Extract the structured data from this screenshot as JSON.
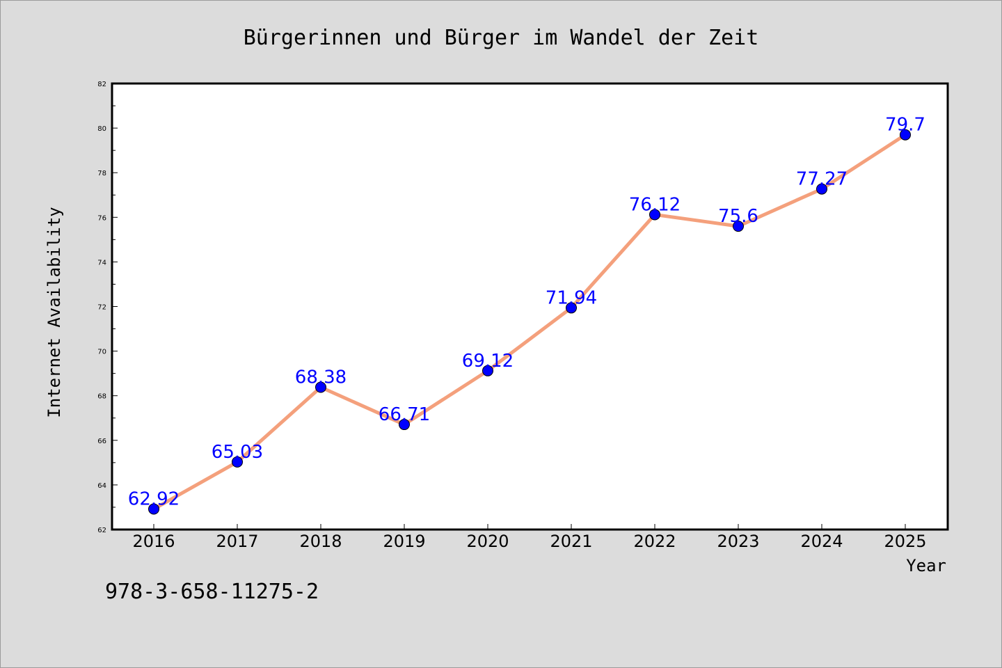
{
  "chart_data": {
    "type": "line",
    "title": "Bürgerinnen und Bürger im Wandel der Zeit",
    "xlabel": "Year",
    "ylabel": "Internet Availability",
    "categories": [
      "2016",
      "2017",
      "2018",
      "2019",
      "2020",
      "2021",
      "2022",
      "2023",
      "2024",
      "2025"
    ],
    "series": [
      {
        "values": [
          62.92,
          65.03,
          68.38,
          66.71,
          69.12,
          71.94,
          76.12,
          75.6,
          77.27,
          79.7
        ],
        "labels": [
          "62.92",
          "65.03",
          "68.38",
          "66.71",
          "69.12",
          "71.94",
          "76.12",
          "75.6",
          "77.27",
          "79.7"
        ]
      }
    ],
    "ylim": [
      62,
      82
    ],
    "yticks": [
      "62",
      "64",
      "66",
      "68",
      "70",
      "72",
      "74",
      "76",
      "78",
      "80",
      "82"
    ],
    "grid": false,
    "line_color": "#f4a07c",
    "marker_color": "#0000ff",
    "label_color": "#0000ff"
  },
  "footer_text": "978-3-658-11275-2"
}
